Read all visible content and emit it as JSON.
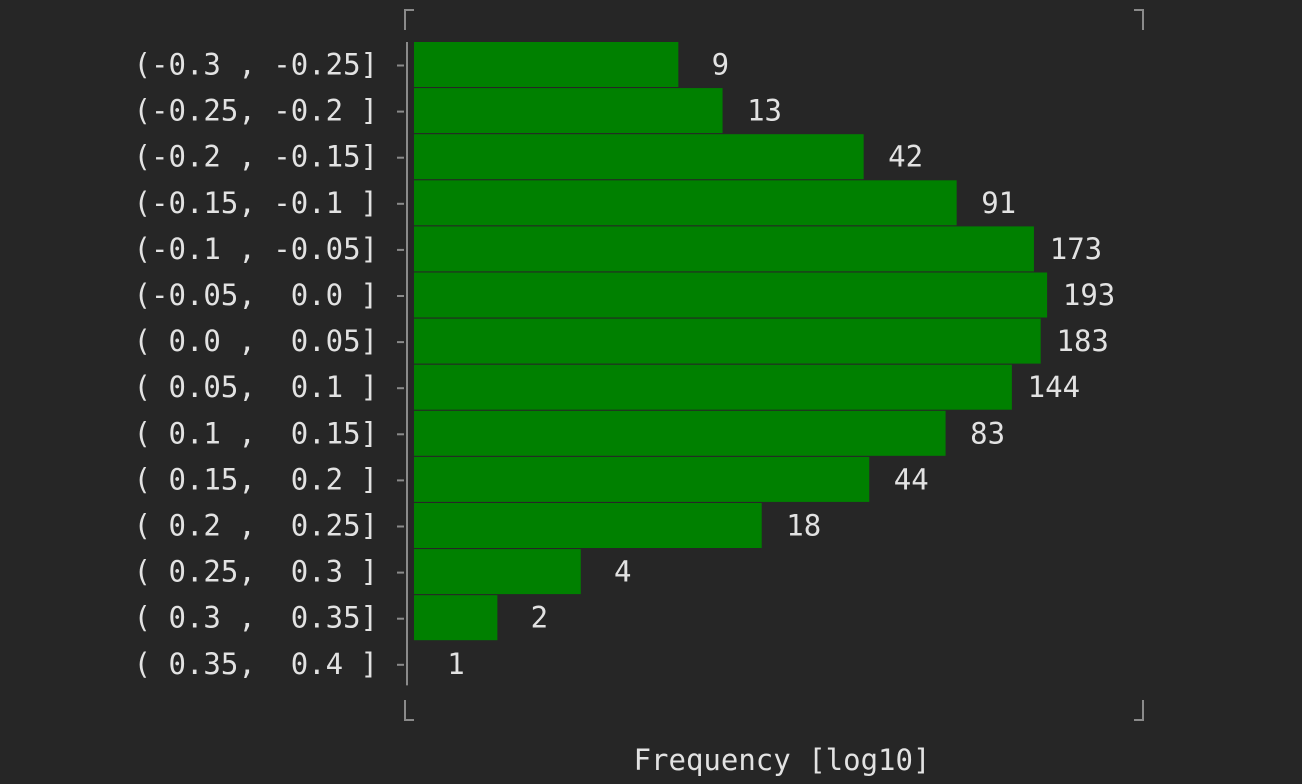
{
  "chart_data": {
    "type": "bar",
    "orientation": "horizontal",
    "categories": [
      "(-0.3 , -0.25]",
      "(-0.25, -0.2 ]",
      "(-0.2 , -0.15]",
      "(-0.15, -0.1 ]",
      "(-0.1 , -0.05]",
      "(-0.05,  0.0 ]",
      "( 0.0 ,  0.05]",
      "( 0.05,  0.1 ]",
      "( 0.1 ,  0.15]",
      "( 0.15,  0.2 ]",
      "( 0.2 ,  0.25]",
      "( 0.25,  0.3 ]",
      "( 0.3 ,  0.35]",
      "( 0.35,  0.4 ]"
    ],
    "values": [
      9,
      13,
      42,
      91,
      173,
      193,
      183,
      144,
      83,
      44,
      18,
      4,
      2,
      1
    ],
    "xscale": "log10",
    "xlabel": "Frequency [log10]",
    "ylabel": "",
    "title": "",
    "bar_color": "#008000",
    "grid": false
  }
}
